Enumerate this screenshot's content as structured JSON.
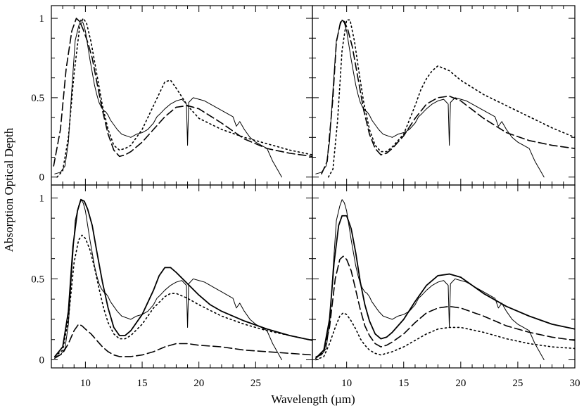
{
  "chart_data": {
    "type": "line",
    "layout": "2x2 panels, shared axes",
    "xlabel": "Wavelength (µm)",
    "ylabel": "Absorption Optical Depth",
    "xlim": [
      7,
      30
    ],
    "ylim": [
      -0.05,
      1.08
    ],
    "x_ticks": [
      10,
      15,
      20,
      25,
      30
    ],
    "y_ticks": [
      0,
      0.5,
      1
    ],
    "y_tick_labels": [
      "0",
      "0.5",
      "1"
    ],
    "grid": false,
    "legend": "none",
    "observed": {
      "style": "thin-solid",
      "x": [
        7.3,
        7.8,
        8.2,
        8.5,
        8.8,
        9.1,
        9.4,
        9.6,
        9.8,
        10.0,
        10.2,
        10.4,
        10.6,
        10.8,
        11.0,
        11.2,
        11.4,
        11.6,
        11.8,
        12.0,
        12.2,
        12.5,
        12.8,
        13.2,
        13.6,
        14.0,
        14.5,
        15.0,
        15.5,
        16.0,
        16.3,
        16.6,
        17.0,
        17.5,
        18.0,
        18.5,
        18.9,
        19.0,
        19.1,
        19.5,
        20.0,
        20.5,
        21.0,
        21.5,
        22.0,
        22.5,
        23.0,
        23.3,
        23.6,
        24.0,
        24.5,
        25.0,
        25.5,
        26.0,
        26.5,
        26.9,
        27.3
      ],
      "y": [
        0.02,
        0.03,
        0.07,
        0.22,
        0.55,
        0.86,
        0.95,
        0.99,
        0.97,
        0.92,
        0.83,
        0.74,
        0.66,
        0.58,
        0.52,
        0.47,
        0.44,
        0.42,
        0.41,
        0.39,
        0.36,
        0.33,
        0.3,
        0.27,
        0.26,
        0.25,
        0.27,
        0.28,
        0.3,
        0.34,
        0.38,
        0.4,
        0.43,
        0.46,
        0.48,
        0.49,
        0.46,
        0.2,
        0.47,
        0.5,
        0.49,
        0.48,
        0.46,
        0.44,
        0.42,
        0.4,
        0.38,
        0.32,
        0.35,
        0.3,
        0.25,
        0.22,
        0.2,
        0.18,
        0.1,
        0.05,
        0.0
      ]
    },
    "panels": [
      {
        "models": [
          {
            "style": "dashed",
            "x": [
              7.2,
              7.8,
              8.3,
              8.8,
              9.2,
              9.5,
              9.8,
              10.2,
              10.6,
              11.0,
              11.5,
              12.0,
              12.5,
              13.0,
              13.5,
              14.0,
              15.0,
              16.0,
              17.0,
              18.0,
              19.0,
              20.0,
              22.0,
              24.0,
              26.0,
              28.0,
              30.0
            ],
            "y": [
              0.07,
              0.3,
              0.68,
              0.92,
              1.0,
              0.98,
              0.93,
              0.85,
              0.75,
              0.6,
              0.42,
              0.27,
              0.17,
              0.13,
              0.14,
              0.16,
              0.22,
              0.3,
              0.38,
              0.44,
              0.45,
              0.43,
              0.34,
              0.24,
              0.18,
              0.15,
              0.13
            ]
          },
          {
            "style": "dotted",
            "x": [
              7.5,
              8.0,
              8.5,
              9.0,
              9.5,
              9.8,
              10.1,
              10.5,
              11.0,
              11.5,
              12.0,
              12.5,
              13.0,
              13.5,
              14.0,
              15.0,
              16.0,
              17.0,
              17.5,
              18.0,
              19.0,
              20.0,
              22.0,
              24.0,
              26.0,
              28.0,
              30.0
            ],
            "y": [
              0.0,
              0.04,
              0.25,
              0.65,
              0.95,
              1.0,
              0.97,
              0.85,
              0.65,
              0.45,
              0.3,
              0.2,
              0.17,
              0.18,
              0.2,
              0.3,
              0.45,
              0.6,
              0.61,
              0.56,
              0.45,
              0.37,
              0.3,
              0.25,
              0.21,
              0.17,
              0.14
            ]
          }
        ]
      },
      {
        "models": [
          {
            "style": "dashed",
            "x": [
              7.8,
              8.3,
              8.8,
              9.1,
              9.5,
              9.8,
              10.1,
              10.5,
              11.0,
              11.5,
              12.0,
              12.5,
              13.0,
              13.5,
              14.0,
              15.0,
              16.0,
              17.0,
              18.0,
              19.0,
              20.0,
              22.0,
              24.0,
              26.0,
              28.0,
              30.0
            ],
            "y": [
              0.02,
              0.1,
              0.5,
              0.85,
              0.99,
              0.98,
              0.93,
              0.82,
              0.62,
              0.42,
              0.27,
              0.18,
              0.14,
              0.15,
              0.18,
              0.26,
              0.37,
              0.46,
              0.5,
              0.51,
              0.48,
              0.37,
              0.28,
              0.23,
              0.2,
              0.18
            ]
          },
          {
            "style": "dotted",
            "x": [
              8.4,
              8.8,
              9.2,
              9.6,
              10.0,
              10.3,
              10.7,
              11.0,
              11.5,
              12.0,
              12.5,
              13.0,
              13.5,
              14.0,
              15.0,
              16.0,
              16.5,
              17.0,
              17.5,
              18.0,
              19.0,
              20.0,
              22.0,
              24.0,
              26.0,
              28.0,
              30.0
            ],
            "y": [
              0.0,
              0.05,
              0.35,
              0.8,
              0.99,
              0.99,
              0.85,
              0.7,
              0.47,
              0.3,
              0.2,
              0.16,
              0.16,
              0.19,
              0.27,
              0.45,
              0.55,
              0.62,
              0.67,
              0.7,
              0.67,
              0.61,
              0.52,
              0.45,
              0.38,
              0.31,
              0.25
            ]
          }
        ]
      },
      {
        "models": [
          {
            "style": "solid",
            "x": [
              7.3,
              8.0,
              8.5,
              8.9,
              9.3,
              9.6,
              9.9,
              10.2,
              10.6,
              11.0,
              11.5,
              12.0,
              12.5,
              13.0,
              13.5,
              14.0,
              15.0,
              16.0,
              16.5,
              17.0,
              17.5,
              18.0,
              19.0,
              20.0,
              21.0,
              22.0,
              24.0,
              26.0,
              28.0,
              30.0
            ],
            "y": [
              0.02,
              0.08,
              0.3,
              0.7,
              0.92,
              0.99,
              0.98,
              0.93,
              0.83,
              0.67,
              0.48,
              0.32,
              0.2,
              0.15,
              0.15,
              0.18,
              0.28,
              0.43,
              0.52,
              0.57,
              0.57,
              0.54,
              0.47,
              0.4,
              0.34,
              0.3,
              0.24,
              0.19,
              0.15,
              0.12
            ]
          },
          {
            "style": "dotted",
            "x": [
              7.3,
              8.0,
              8.5,
              9.0,
              9.4,
              9.7,
              10.0,
              10.4,
              10.8,
              11.2,
              11.6,
              12.0,
              12.5,
              13.0,
              13.5,
              14.0,
              15.0,
              16.0,
              17.0,
              17.5,
              18.0,
              19.0,
              20.0,
              22.0,
              24.0,
              26.0,
              28.0,
              30.0
            ],
            "y": [
              0.02,
              0.06,
              0.25,
              0.6,
              0.74,
              0.77,
              0.75,
              0.68,
              0.57,
              0.44,
              0.32,
              0.23,
              0.16,
              0.13,
              0.13,
              0.15,
              0.22,
              0.32,
              0.39,
              0.41,
              0.41,
              0.38,
              0.34,
              0.27,
              0.22,
              0.18,
              0.15,
              0.12
            ]
          },
          {
            "style": "dashed",
            "x": [
              7.3,
              8.0,
              8.5,
              9.0,
              9.4,
              9.7,
              10.0,
              10.5,
              11.0,
              11.5,
              12.0,
              12.5,
              13.0,
              14.0,
              15.0,
              16.0,
              17.0,
              18.0,
              19.0,
              20.0,
              22.0,
              24.0,
              26.0,
              28.0,
              30.0
            ],
            "y": [
              0.01,
              0.04,
              0.1,
              0.18,
              0.22,
              0.21,
              0.19,
              0.16,
              0.12,
              0.08,
              0.05,
              0.03,
              0.02,
              0.02,
              0.03,
              0.05,
              0.08,
              0.1,
              0.1,
              0.09,
              0.08,
              0.06,
              0.05,
              0.04,
              0.03
            ]
          }
        ]
      },
      {
        "models": [
          {
            "style": "solid",
            "x": [
              7.3,
              8.0,
              8.5,
              8.9,
              9.3,
              9.6,
              10.0,
              10.4,
              10.8,
              11.2,
              11.6,
              12.0,
              12.5,
              13.0,
              13.5,
              14.0,
              15.0,
              16.0,
              17.0,
              18.0,
              19.0,
              20.0,
              21.0,
              22.0,
              24.0,
              26.0,
              28.0,
              30.0
            ],
            "y": [
              0.01,
              0.06,
              0.25,
              0.6,
              0.83,
              0.89,
              0.89,
              0.81,
              0.66,
              0.48,
              0.34,
              0.24,
              0.16,
              0.13,
              0.14,
              0.17,
              0.25,
              0.36,
              0.46,
              0.52,
              0.53,
              0.51,
              0.46,
              0.41,
              0.33,
              0.27,
              0.22,
              0.19
            ]
          },
          {
            "style": "dashed",
            "x": [
              7.3,
              8.0,
              8.5,
              9.0,
              9.4,
              9.7,
              10.0,
              10.4,
              10.8,
              11.2,
              11.6,
              12.0,
              12.5,
              13.0,
              13.5,
              14.0,
              15.0,
              16.0,
              17.0,
              18.0,
              19.0,
              20.0,
              22.0,
              24.0,
              26.0,
              28.0,
              30.0
            ],
            "y": [
              0.01,
              0.05,
              0.2,
              0.5,
              0.62,
              0.64,
              0.62,
              0.55,
              0.43,
              0.31,
              0.21,
              0.15,
              0.1,
              0.08,
              0.09,
              0.11,
              0.16,
              0.23,
              0.29,
              0.32,
              0.33,
              0.32,
              0.27,
              0.21,
              0.17,
              0.14,
              0.12
            ]
          },
          {
            "style": "dotted",
            "x": [
              7.3,
              8.0,
              8.5,
              9.0,
              9.4,
              9.7,
              10.0,
              10.4,
              10.8,
              11.2,
              11.6,
              12.0,
              12.5,
              13.0,
              13.5,
              14.0,
              15.0,
              16.0,
              17.0,
              18.0,
              19.0,
              20.0,
              22.0,
              24.0,
              26.0,
              28.0,
              30.0
            ],
            "y": [
              0.0,
              0.02,
              0.1,
              0.2,
              0.27,
              0.29,
              0.28,
              0.24,
              0.19,
              0.13,
              0.09,
              0.06,
              0.04,
              0.03,
              0.04,
              0.05,
              0.08,
              0.12,
              0.16,
              0.19,
              0.2,
              0.2,
              0.17,
              0.13,
              0.1,
              0.08,
              0.07
            ]
          }
        ]
      }
    ]
  }
}
